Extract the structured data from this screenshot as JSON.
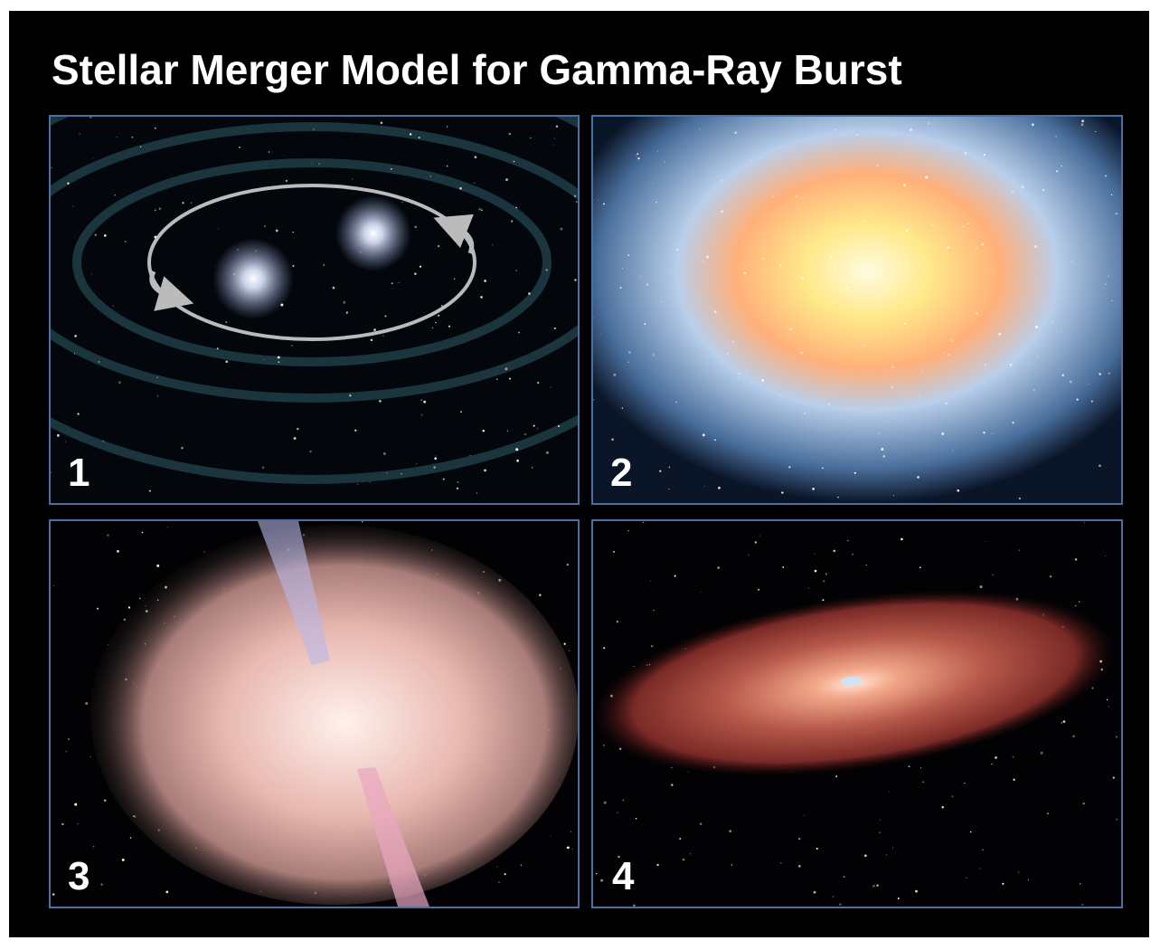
{
  "header": {
    "title": "Stellar Merger Model for Gamma-Ray Burst"
  },
  "panels": [
    {
      "label": "1"
    },
    {
      "label": "2"
    },
    {
      "label": "3"
    },
    {
      "label": "4"
    }
  ]
}
